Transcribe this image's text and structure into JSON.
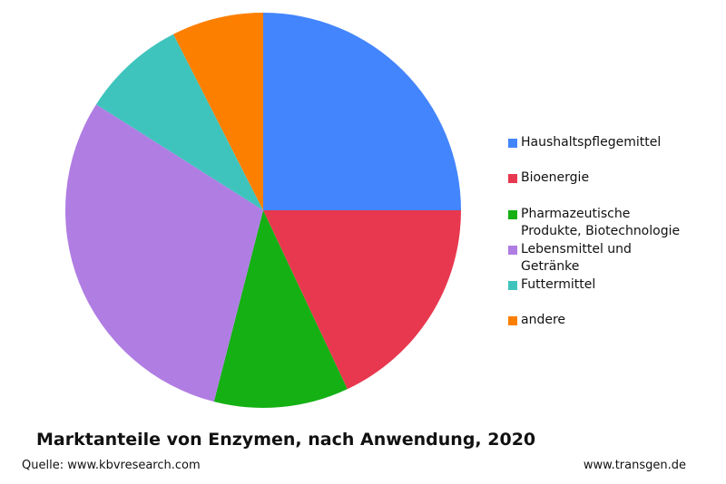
{
  "chart_data": {
    "type": "pie",
    "title": "Marktanteile von Enzymen, nach Anwendung, 2020",
    "source": "Quelle: www.kbvresearch.com",
    "credit": "www.transgen.de",
    "categories": [
      "Haushaltspflegemittel",
      "Bioenergie",
      "Pharmazeutische Produkte, Biotechnologie",
      "Lebensmittel und Getränke",
      "Futtermittel",
      "andere"
    ],
    "values": [
      25,
      18,
      11,
      30,
      8.5,
      7.5
    ],
    "colors": [
      "#4385fc",
      "#e8384f",
      "#14b014",
      "#b07de3",
      "#3fc4bd",
      "#fd7f00"
    ],
    "legend": "right"
  }
}
